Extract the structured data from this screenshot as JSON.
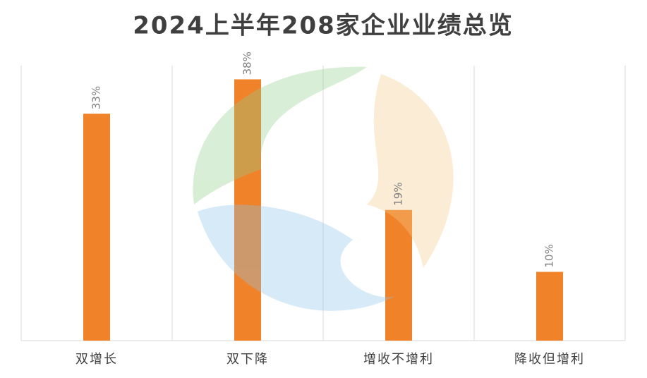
{
  "chart_data": {
    "type": "bar",
    "title": "2024上半年208家企业业绩总览",
    "categories": [
      "双增长",
      "双下降",
      "增收不增利",
      "降收但增利"
    ],
    "values": [
      33,
      38,
      19,
      10
    ],
    "value_labels": [
      "33%",
      "38%",
      "19%",
      "10%"
    ],
    "color": "#f0832a",
    "ylim": [
      0,
      40
    ]
  }
}
